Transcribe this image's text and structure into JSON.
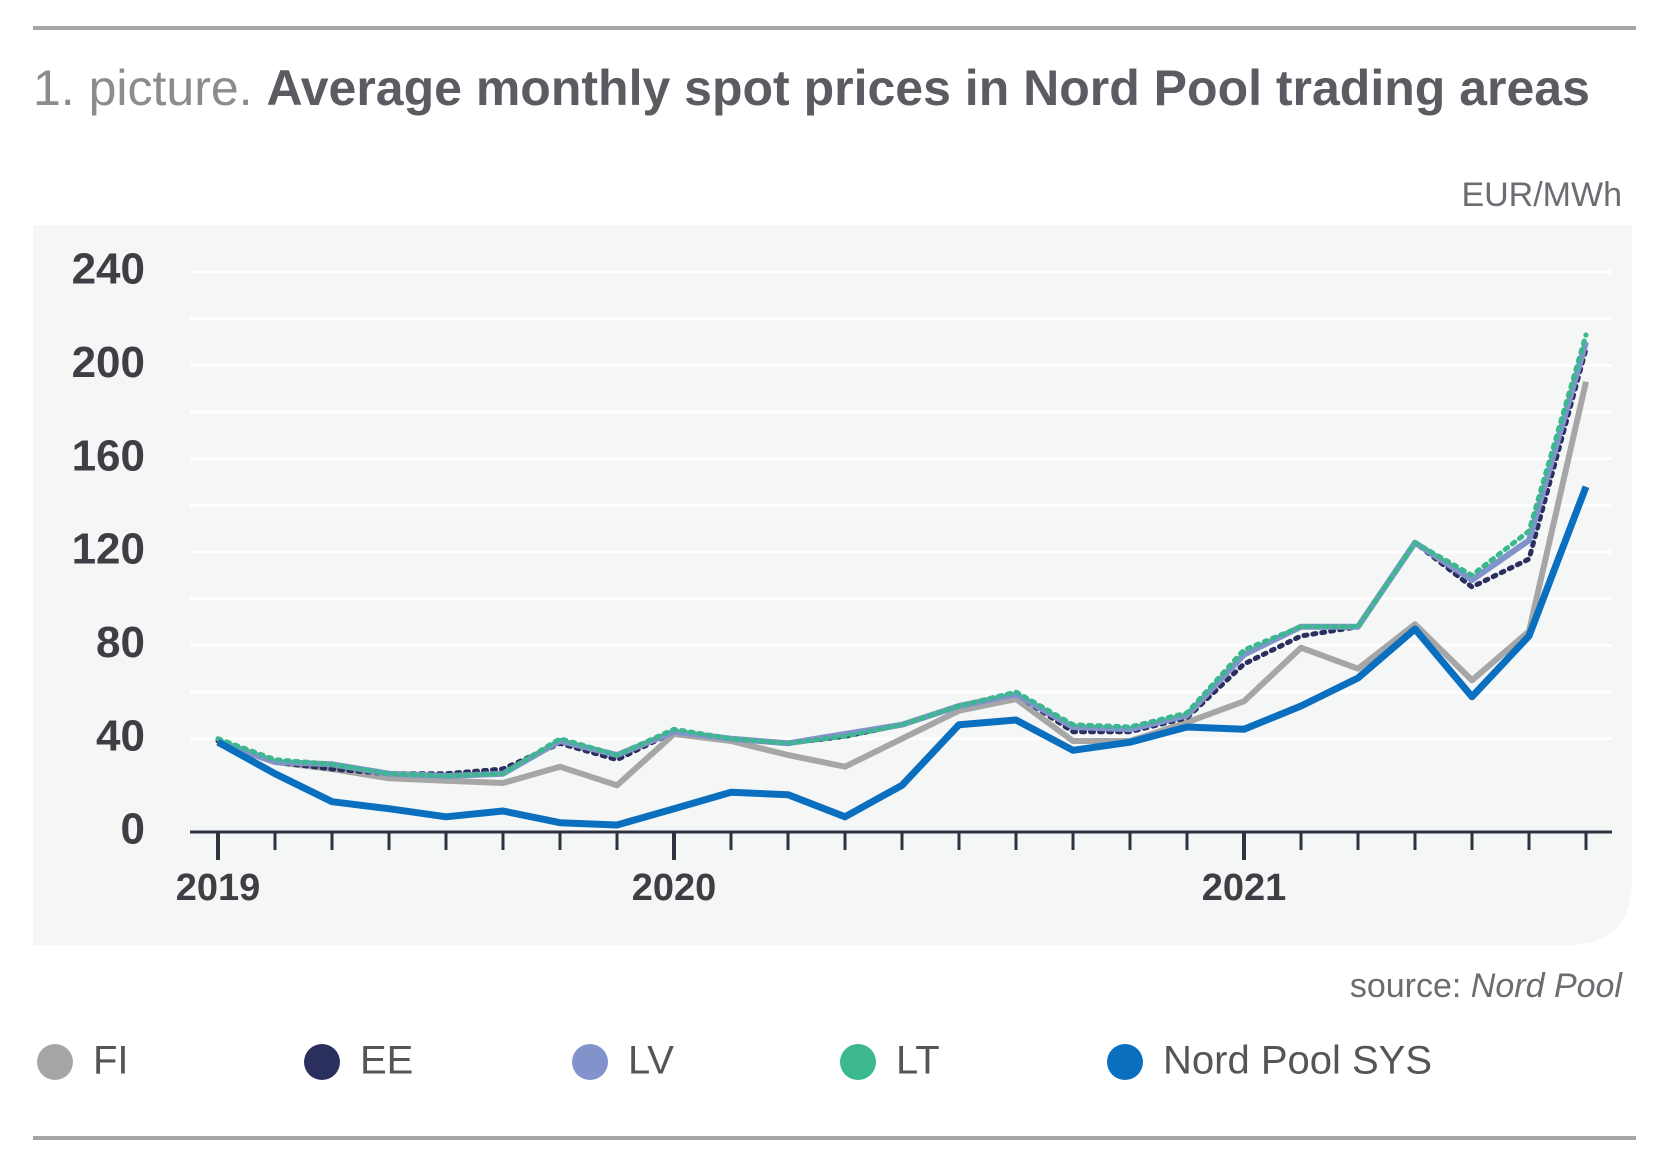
{
  "chart_data": {
    "type": "line",
    "title_prefix": "1. picture.",
    "title": "Average monthly spot prices in Nord Pool trading areas",
    "unit": "EUR/MWh",
    "source_label": "source:",
    "source_name": "Nord Pool",
    "categories": [
      "2019",
      null,
      null,
      null,
      null,
      null,
      null,
      null,
      "2020",
      null,
      null,
      null,
      null,
      null,
      null,
      null,
      null,
      null,
      "2021",
      null,
      null,
      null,
      null,
      null,
      null
    ],
    "ylim": [
      0,
      240
    ],
    "yticks": [
      0,
      40,
      80,
      120,
      160,
      200,
      240
    ],
    "grid": true,
    "legend": "bottom",
    "series": [
      {
        "name": "FI",
        "color": "#a6a6a6",
        "style": "solid",
        "values": [
          38,
          30,
          27,
          23,
          22,
          21,
          28,
          20,
          42,
          39,
          33,
          28,
          40,
          52,
          57,
          39,
          39,
          47,
          56,
          79,
          70,
          89,
          65,
          86,
          193
        ]
      },
      {
        "name": "EE",
        "color": "#2a2f5e",
        "style": "dotted",
        "values": [
          39,
          30,
          27,
          25,
          25,
          27,
          38,
          31,
          43,
          40,
          38,
          41,
          46,
          54,
          59,
          43,
          43,
          49,
          72,
          84,
          88,
          124,
          105,
          117,
          207
        ]
      },
      {
        "name": "LV",
        "color": "#8293cc",
        "style": "solid",
        "values": [
          39,
          30,
          29,
          25,
          24,
          25,
          39,
          33,
          43,
          40,
          38,
          42,
          46,
          54,
          59,
          45,
          44,
          50,
          76,
          88,
          88,
          124,
          108,
          125,
          210
        ]
      },
      {
        "name": "LT",
        "color": "#3bb88f",
        "style": "dotted",
        "values": [
          40,
          31,
          29,
          25,
          24,
          25,
          40,
          33,
          44,
          40,
          38,
          41,
          46,
          54,
          60,
          46,
          45,
          51,
          78,
          88,
          88,
          124,
          110,
          129,
          213
        ]
      },
      {
        "name": "Nord Pool SYS",
        "color": "#0a6fbf",
        "style": "bold",
        "values": [
          38.5,
          25,
          13,
          10,
          6.5,
          9,
          4,
          3,
          10,
          17,
          16,
          6.5,
          20,
          46,
          48,
          35,
          38.5,
          45,
          44,
          54,
          66,
          87,
          58,
          84,
          148
        ]
      }
    ]
  }
}
